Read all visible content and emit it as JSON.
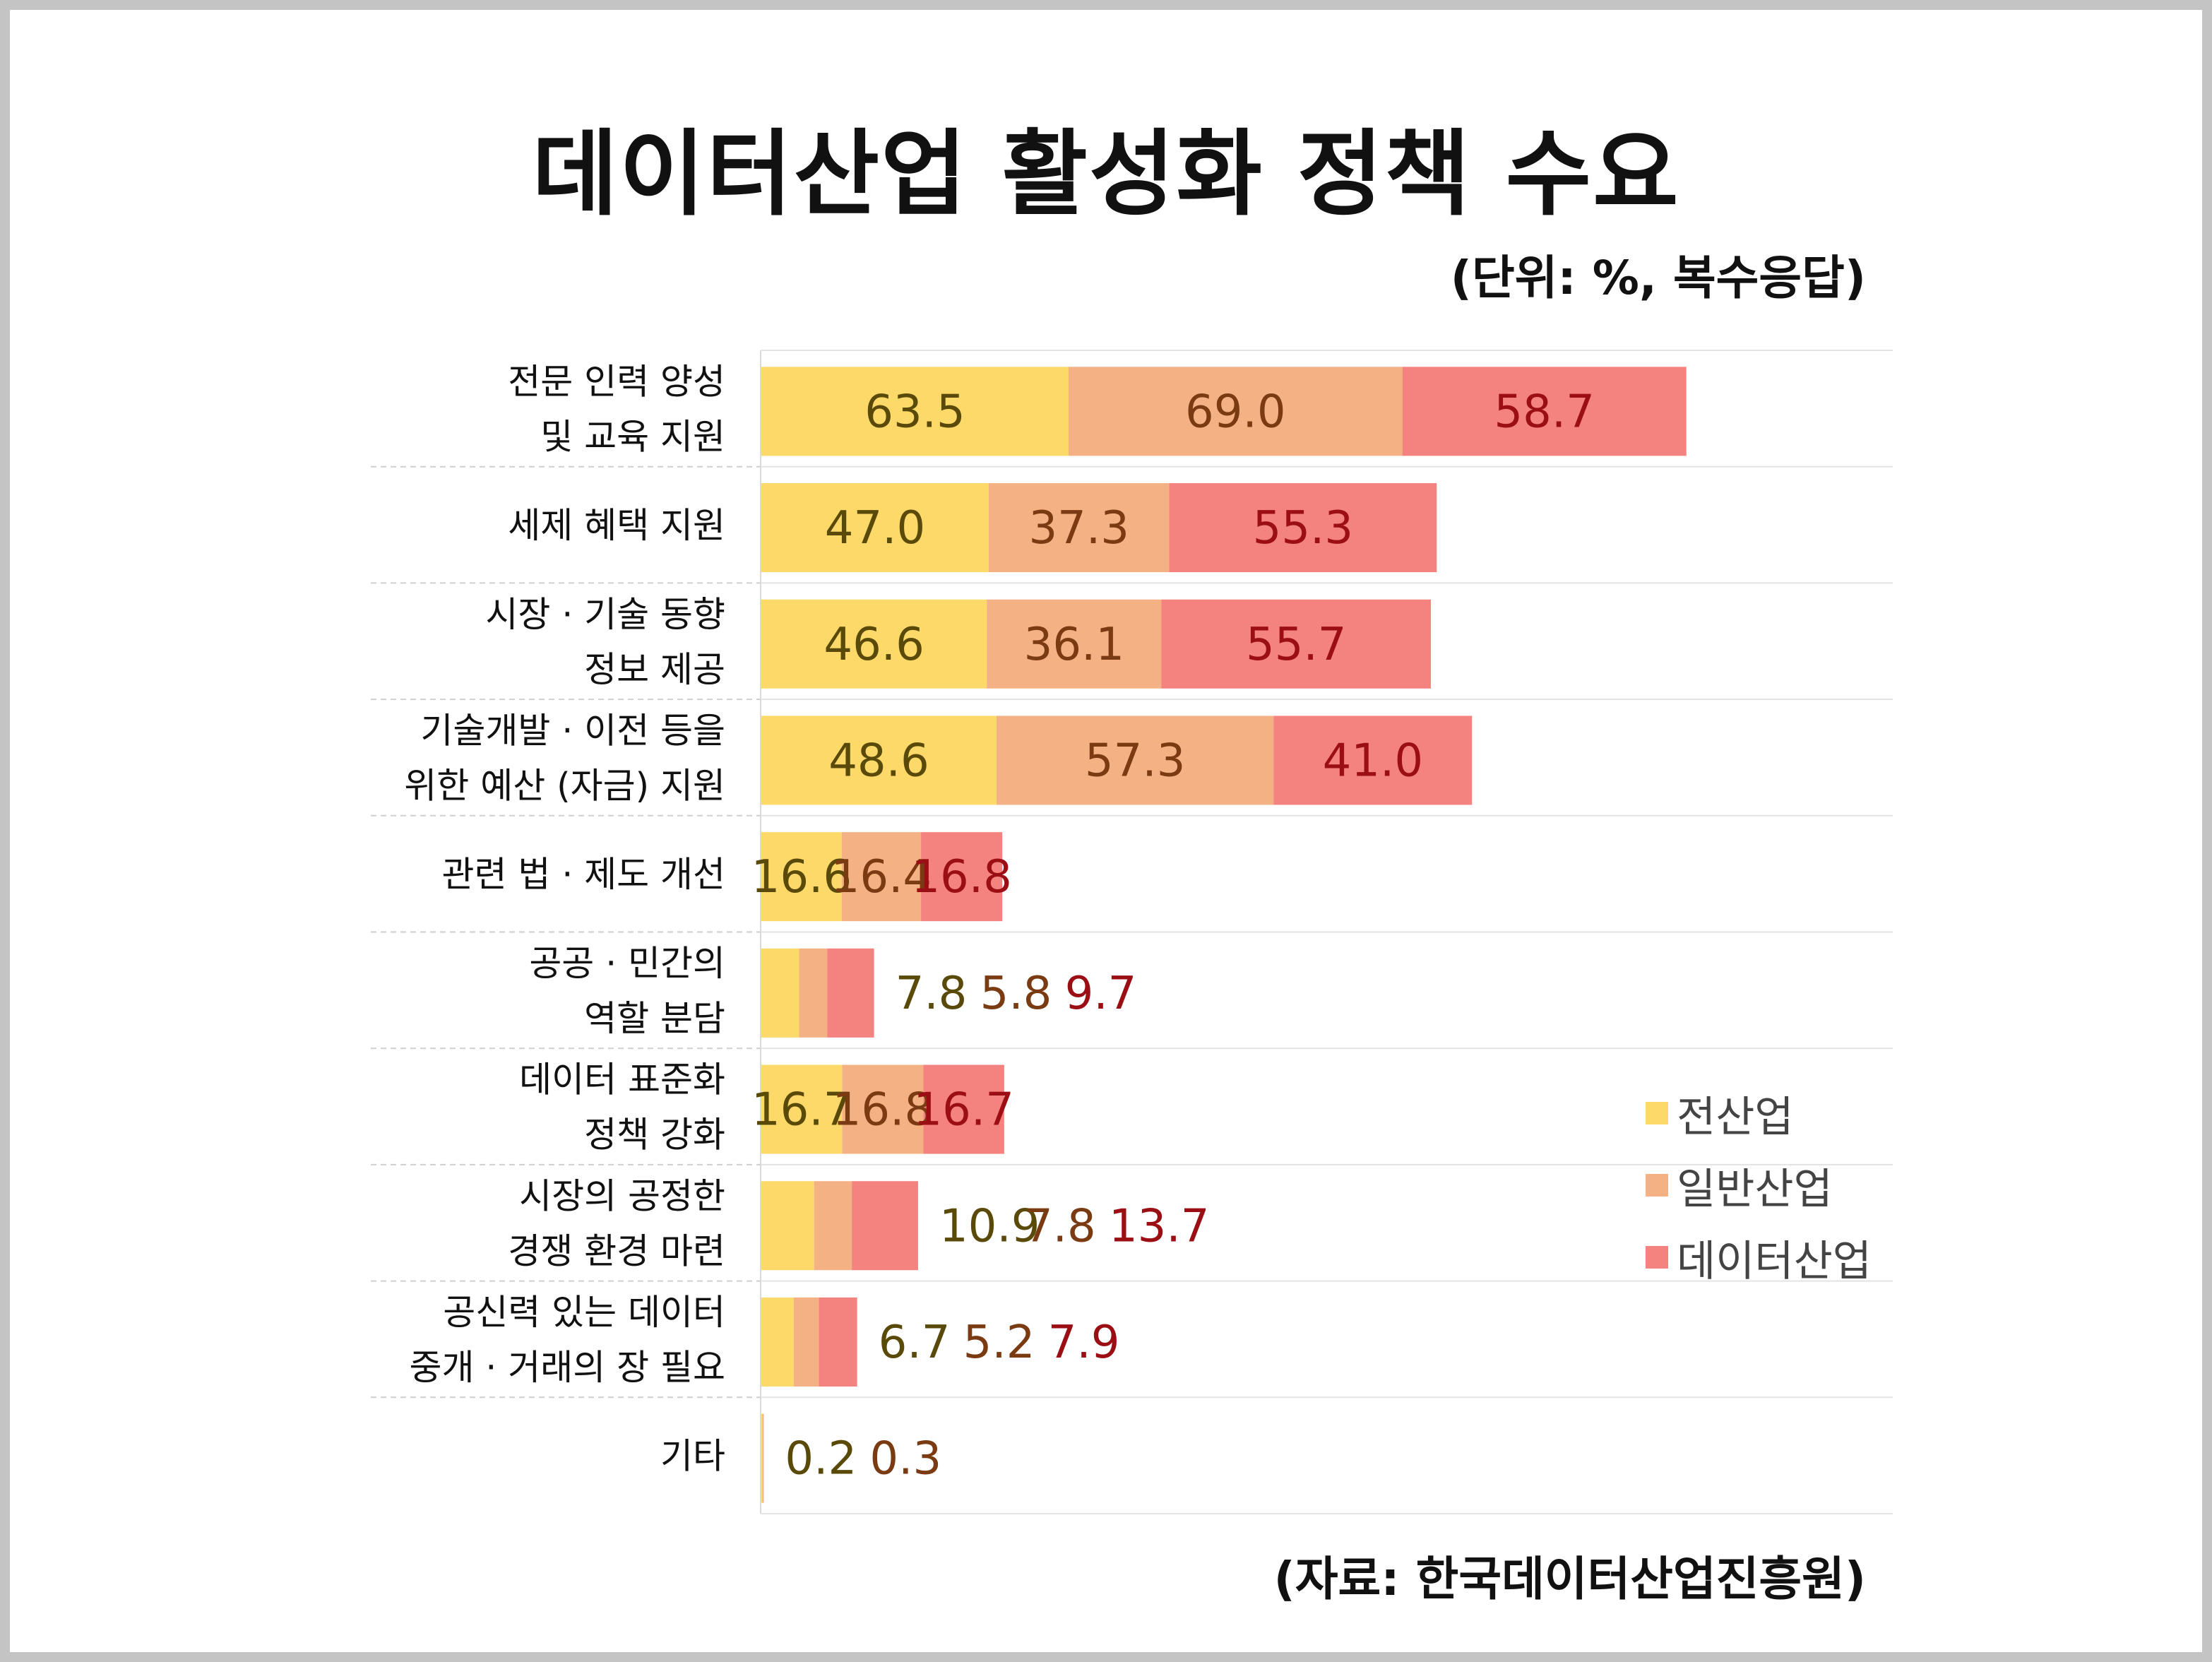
{
  "title": "데이터산업 활성화 정책 수요",
  "unit_note": "(단위: %, 복수응답)",
  "source_note": "(자료: 한국데이터산업진흥원)",
  "colors": {
    "전산업": "#FDD96A",
    "일반산업": "#F4B183",
    "데이터산업": "#F4827F",
    "label_전산업": "#5a4a0a",
    "label_일반산업": "#7a3a12",
    "label_데이터산업": "#9b0f14"
  },
  "chart_data": {
    "type": "bar",
    "orientation": "horizontal",
    "stacked": true,
    "categories": [
      [
        "전문 인력 양성",
        "및 교육 지원"
      ],
      [
        "세제 혜택 지원"
      ],
      [
        "시장 · 기술 동향",
        "정보 제공"
      ],
      [
        "기술개발 · 이전 등을",
        "위한 예산 (자금) 지원"
      ],
      [
        "관련 법 · 제도 개선"
      ],
      [
        "공공 · 민간의",
        "역할 분담"
      ],
      [
        "데이터 표준화",
        "정책 강화"
      ],
      [
        "시장의 공정한",
        "경쟁 환경 마련"
      ],
      [
        "공신력 있는 데이터",
        "중개 · 거래의 장 필요"
      ],
      [
        "기타"
      ]
    ],
    "series": [
      {
        "name": "전산업",
        "values": [
          63.5,
          47.0,
          46.6,
          48.6,
          16.6,
          7.8,
          16.7,
          10.9,
          6.7,
          0.2
        ]
      },
      {
        "name": "일반산업",
        "values": [
          69.0,
          37.3,
          36.1,
          57.3,
          16.4,
          5.8,
          16.8,
          7.8,
          5.2,
          0.3
        ]
      },
      {
        "name": "데이터산업",
        "values": [
          58.7,
          55.3,
          55.7,
          41.0,
          16.8,
          9.7,
          16.7,
          13.7,
          7.9,
          null
        ]
      }
    ],
    "value_labels": [
      [
        "63.5",
        "69.0",
        "58.7"
      ],
      [
        "47.0",
        "37.3",
        "55.3"
      ],
      [
        "46.6",
        "36.1",
        "55.7"
      ],
      [
        "48.6",
        "57.3",
        "41.0"
      ],
      [
        "16.6",
        "16.4",
        "16.8"
      ],
      [
        "7.8",
        "5.8",
        "9.7"
      ],
      [
        "16.7",
        "16.8",
        "16.7"
      ],
      [
        "10.9",
        "7.8",
        "13.7"
      ],
      [
        "6.7",
        "5.2",
        "7.9"
      ],
      [
        "0.2",
        "0.3",
        ""
      ]
    ],
    "legend": [
      "전산업",
      "일반산업",
      "데이터산업"
    ],
    "legend_position": "right",
    "grid": true
  }
}
